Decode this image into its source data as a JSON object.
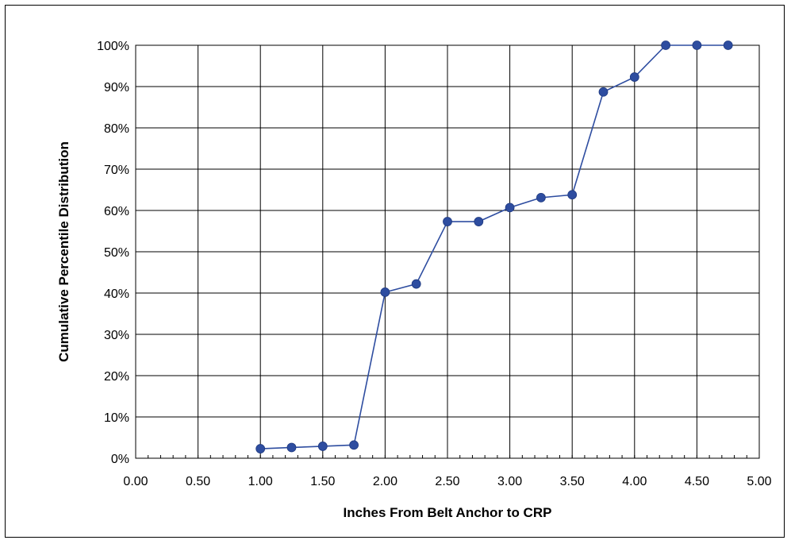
{
  "chart_data": {
    "type": "line",
    "title": "",
    "xlabel": "Inches From Belt Anchor to CRP",
    "ylabel": "Cumulative Percentile Distribution",
    "xlim": [
      0,
      5
    ],
    "ylim": [
      0,
      100
    ],
    "x_ticks": [
      "0.00",
      "0.50",
      "1.00",
      "1.50",
      "2.00",
      "2.50",
      "3.00",
      "3.50",
      "4.00",
      "4.50",
      "5.00"
    ],
    "y_ticks": [
      "0%",
      "10%",
      "20%",
      "30%",
      "40%",
      "50%",
      "60%",
      "70%",
      "80%",
      "90%",
      "100%"
    ],
    "grid": true,
    "legend": "none",
    "series": [
      {
        "color": "#2e4da0",
        "x": [
          1.0,
          1.25,
          1.5,
          1.75,
          2.0,
          2.25,
          2.5,
          2.75,
          3.0,
          3.25,
          3.5,
          3.75,
          4.0,
          4.25,
          4.5,
          4.75
        ],
        "y": [
          2.3,
          2.6,
          2.9,
          3.2,
          40.2,
          42.2,
          57.3,
          57.3,
          60.7,
          63.1,
          63.8,
          88.7,
          92.3,
          100,
          100,
          100
        ]
      }
    ]
  }
}
